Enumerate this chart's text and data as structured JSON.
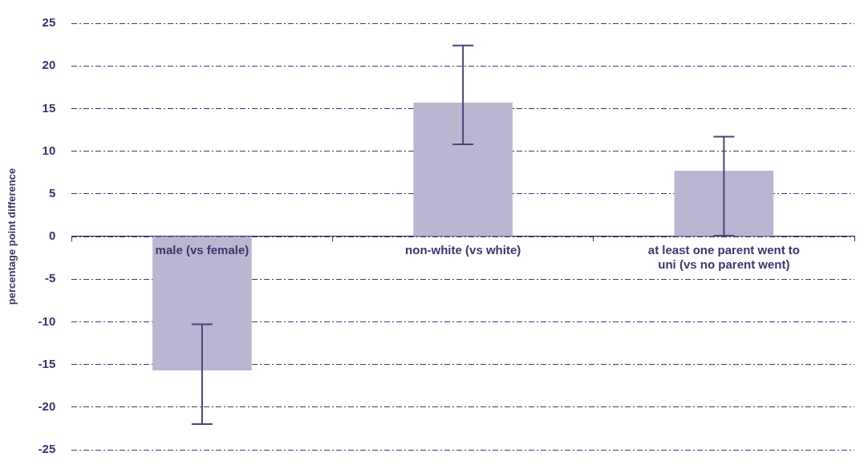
{
  "chart_data": {
    "type": "bar",
    "ylabel": "percentage point difference",
    "categories": [
      "male (vs female)",
      "non-white (vs white)",
      "at least one parent went to uni (vs no parent went)"
    ],
    "values": [
      -15.7,
      15.7,
      7.7
    ],
    "errors": [
      [
        -22.0,
        -10.3
      ],
      [
        10.8,
        22.4
      ],
      [
        0.1,
        11.7
      ]
    ],
    "color": "#bab6d1",
    "ylim": [
      -25,
      25
    ],
    "yticks": [
      -25,
      -20,
      -15,
      -10,
      -5,
      0,
      5,
      10,
      15,
      20,
      25
    ],
    "grid": "y",
    "legend": false
  }
}
